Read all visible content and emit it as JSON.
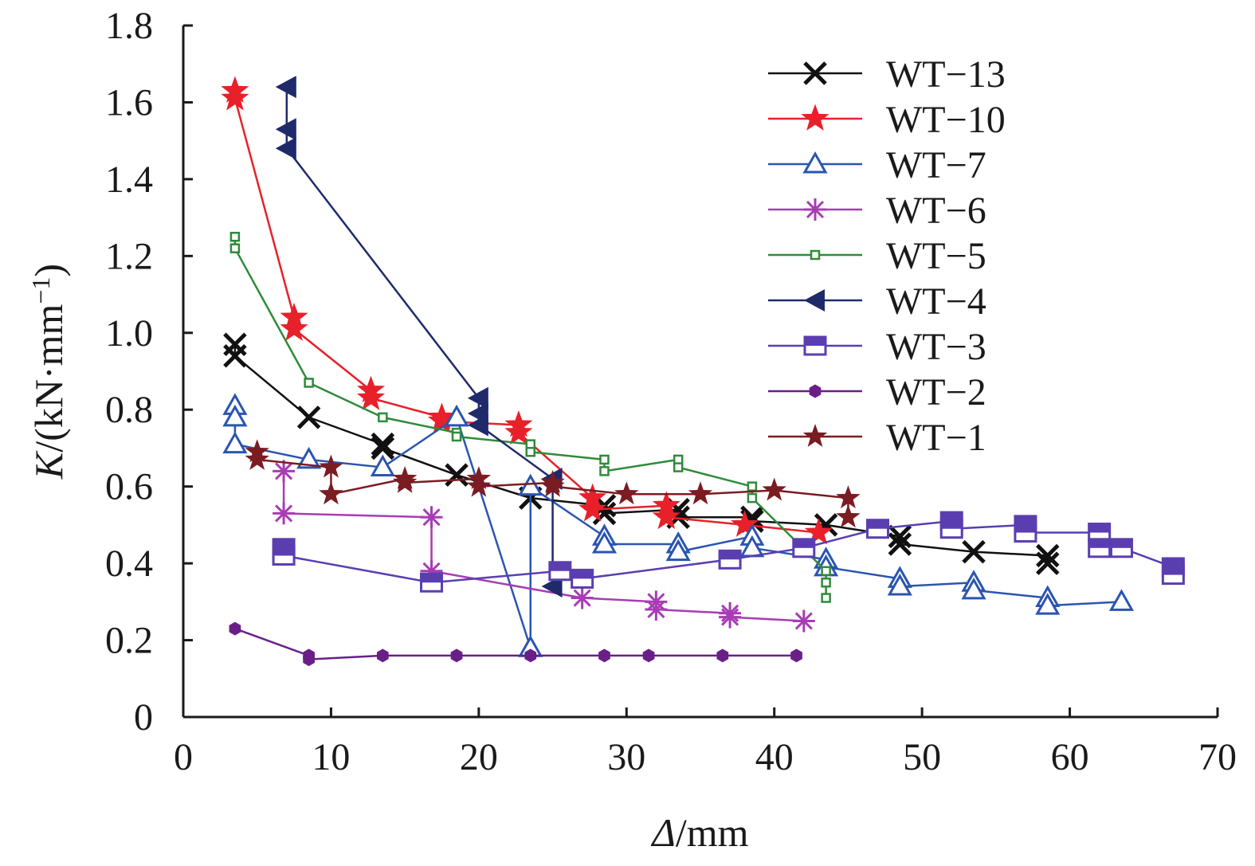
{
  "chart_data": {
    "type": "line",
    "xlabel_var": "Δ",
    "xlabel_unit": "/mm",
    "ylabel_var": "K",
    "ylabel_unit": "/(kN·mm",
    "ylabel_exp": "−1",
    "ylabel_close": ")",
    "xlim": [
      0,
      70
    ],
    "ylim": [
      0,
      1.8
    ],
    "xticks": [
      {
        "v": 0,
        "label": "0"
      },
      {
        "v": 10,
        "label": "10"
      },
      {
        "v": 20,
        "label": "20"
      },
      {
        "v": 30,
        "label": "30"
      },
      {
        "v": 40,
        "label": "40"
      },
      {
        "v": 50,
        "label": "50"
      },
      {
        "v": 60,
        "label": "60"
      },
      {
        "v": 70,
        "label": "70"
      }
    ],
    "yticks": [
      {
        "v": 0,
        "label": "0"
      },
      {
        "v": 0.2,
        "label": "0.2"
      },
      {
        "v": 0.4,
        "label": "0.4"
      },
      {
        "v": 0.6,
        "label": "0.6"
      },
      {
        "v": 0.8,
        "label": "0.8"
      },
      {
        "v": 1.0,
        "label": "1.0"
      },
      {
        "v": 1.2,
        "label": "1.2"
      },
      {
        "v": 1.4,
        "label": "1.4"
      },
      {
        "v": 1.6,
        "label": "1.6"
      },
      {
        "v": 1.8,
        "label": "1.8"
      }
    ],
    "grid": false,
    "legend_position": "top-right",
    "series": [
      {
        "name": "WT−13",
        "color": "#111111",
        "marker": "x",
        "points": [
          [
            3.5,
            0.97
          ],
          [
            3.5,
            0.94
          ],
          [
            8.5,
            0.78
          ],
          [
            13.5,
            0.71
          ],
          [
            13.5,
            0.7
          ],
          [
            18.5,
            0.63
          ],
          [
            23.5,
            0.57
          ],
          [
            28.5,
            0.55
          ],
          [
            28.5,
            0.53
          ],
          [
            33.5,
            0.54
          ],
          [
            33.5,
            0.52
          ],
          [
            38.5,
            0.52
          ],
          [
            38.5,
            0.51
          ],
          [
            43.5,
            0.5
          ],
          [
            48.5,
            0.47
          ],
          [
            48.5,
            0.45
          ],
          [
            53.5,
            0.43
          ],
          [
            58.5,
            0.42
          ],
          [
            58.5,
            0.4
          ]
        ]
      },
      {
        "name": "WT−10",
        "color": "#e8202a",
        "marker": "star",
        "points": [
          [
            3.5,
            1.63
          ],
          [
            3.5,
            1.61
          ],
          [
            7.5,
            1.04
          ],
          [
            7.5,
            1.01
          ],
          [
            12.7,
            0.85
          ],
          [
            12.7,
            0.83
          ],
          [
            17.5,
            0.78
          ],
          [
            17.5,
            0.77
          ],
          [
            22.7,
            0.76
          ],
          [
            22.7,
            0.74
          ],
          [
            27.7,
            0.57
          ],
          [
            27.7,
            0.54
          ],
          [
            32.7,
            0.55
          ],
          [
            32.7,
            0.52
          ],
          [
            38,
            0.5
          ],
          [
            43,
            0.48
          ]
        ]
      },
      {
        "name": "WT−7",
        "color": "#2a55b0",
        "marker": "triangle",
        "points": [
          [
            3.5,
            0.81
          ],
          [
            3.5,
            0.78
          ],
          [
            3.5,
            0.71
          ],
          [
            8.5,
            0.67
          ],
          [
            13.5,
            0.65
          ],
          [
            18.5,
            0.78
          ],
          [
            23.5,
            0.18
          ],
          [
            23.5,
            0.6
          ],
          [
            28.5,
            0.47
          ],
          [
            28.5,
            0.45
          ],
          [
            33.5,
            0.45
          ],
          [
            33.5,
            0.43
          ],
          [
            38.5,
            0.47
          ],
          [
            38.5,
            0.44
          ],
          [
            43.5,
            0.41
          ],
          [
            43.5,
            0.39
          ],
          [
            48.5,
            0.36
          ],
          [
            48.5,
            0.34
          ],
          [
            53.5,
            0.35
          ],
          [
            53.5,
            0.33
          ],
          [
            58.5,
            0.31
          ],
          [
            58.5,
            0.29
          ],
          [
            63.5,
            0.3
          ]
        ]
      },
      {
        "name": "WT−6",
        "color": "#a83cb4",
        "marker": "asterisk",
        "points": [
          [
            6.8,
            0.64
          ],
          [
            6.8,
            0.53
          ],
          [
            16.8,
            0.52
          ],
          [
            16.8,
            0.38
          ],
          [
            27,
            0.31
          ],
          [
            32,
            0.3
          ],
          [
            32,
            0.28
          ],
          [
            37,
            0.27
          ],
          [
            37,
            0.26
          ],
          [
            42,
            0.25
          ]
        ]
      },
      {
        "name": "WT−5",
        "color": "#2e8b3a",
        "marker": "smallsquare",
        "points": [
          [
            3.5,
            1.25
          ],
          [
            3.5,
            1.22
          ],
          [
            8.5,
            0.87
          ],
          [
            13.5,
            0.78
          ],
          [
            18.5,
            0.74
          ],
          [
            18.5,
            0.73
          ],
          [
            23.5,
            0.71
          ],
          [
            23.5,
            0.69
          ],
          [
            28.5,
            0.67
          ],
          [
            28.5,
            0.64
          ],
          [
            33.5,
            0.67
          ],
          [
            33.5,
            0.65
          ],
          [
            38.5,
            0.6
          ],
          [
            38.5,
            0.57
          ],
          [
            43.5,
            0.38
          ],
          [
            43.5,
            0.35
          ],
          [
            43.5,
            0.31
          ]
        ]
      },
      {
        "name": "WT−4",
        "color": "#1f2a6b",
        "marker": "lefttriangle",
        "points": [
          [
            7.0,
            1.64
          ],
          [
            7.0,
            1.53
          ],
          [
            7.0,
            1.48
          ],
          [
            20,
            0.83
          ],
          [
            20,
            0.79
          ],
          [
            20,
            0.76
          ],
          [
            25,
            0.62
          ],
          [
            25,
            0.34
          ]
        ]
      },
      {
        "name": "WT−3",
        "color": "#5a3eb0",
        "marker": "bigsquare",
        "points": [
          [
            6.8,
            0.44
          ],
          [
            6.8,
            0.42
          ],
          [
            16.8,
            0.35
          ],
          [
            25.5,
            0.38
          ],
          [
            27,
            0.36
          ],
          [
            37,
            0.41
          ],
          [
            42,
            0.44
          ],
          [
            47,
            0.49
          ],
          [
            52,
            0.51
          ],
          [
            52,
            0.49
          ],
          [
            57,
            0.5
          ],
          [
            57,
            0.48
          ],
          [
            62,
            0.48
          ],
          [
            62,
            0.44
          ],
          [
            63.5,
            0.44
          ],
          [
            67,
            0.39
          ],
          [
            67,
            0.37
          ]
        ]
      },
      {
        "name": "WT−2",
        "color": "#6a1f88",
        "marker": "hexagon",
        "points": [
          [
            3.5,
            0.23
          ],
          [
            8.5,
            0.16
          ],
          [
            8.5,
            0.15
          ],
          [
            13.5,
            0.16
          ],
          [
            18.5,
            0.16
          ],
          [
            23.5,
            0.16
          ],
          [
            28.5,
            0.16
          ],
          [
            31.5,
            0.16
          ],
          [
            36.5,
            0.16
          ],
          [
            41.5,
            0.16
          ]
        ]
      },
      {
        "name": "WT−1",
        "color": "#7a1c22",
        "marker": "darkstar",
        "points": [
          [
            5,
            0.69
          ],
          [
            5,
            0.67
          ],
          [
            10,
            0.65
          ],
          [
            10,
            0.58
          ],
          [
            15,
            0.62
          ],
          [
            15,
            0.61
          ],
          [
            20,
            0.62
          ],
          [
            20,
            0.6
          ],
          [
            25,
            0.61
          ],
          [
            25,
            0.6
          ],
          [
            30,
            0.58
          ],
          [
            35,
            0.58
          ],
          [
            40,
            0.59
          ],
          [
            45,
            0.57
          ],
          [
            45,
            0.52
          ]
        ]
      }
    ]
  }
}
